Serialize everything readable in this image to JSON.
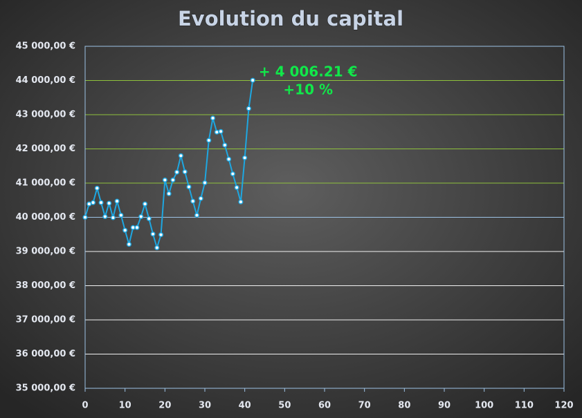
{
  "chart_data": {
    "type": "line",
    "title": "Evolution du capital",
    "annotations": [
      "+ 4 006.21 €",
      "+10 %"
    ],
    "x": [
      0,
      1,
      2,
      3,
      4,
      5,
      6,
      7,
      8,
      9,
      10,
      11,
      12,
      13,
      14,
      15,
      16,
      17,
      18,
      19,
      20,
      21,
      22,
      23,
      24,
      25,
      26,
      27,
      28,
      29,
      30,
      31,
      32,
      33,
      34,
      35,
      36,
      37,
      38,
      39,
      40,
      41,
      42
    ],
    "series": [
      {
        "color": "#1ea7e1",
        "values": [
          40000,
          40390,
          40430,
          40850,
          40430,
          40020,
          40410,
          39990,
          40470,
          40060,
          39620,
          39210,
          39700,
          39700,
          40020,
          40390,
          39960,
          39510,
          39110,
          39490,
          41090,
          40690,
          41090,
          41320,
          41800,
          41330,
          40890,
          40470,
          40060,
          40550,
          41010,
          42250,
          42900,
          42490,
          42510,
          42110,
          41700,
          41270,
          40870,
          40450,
          41740,
          43180,
          44006.21
        ]
      }
    ],
    "xlim": [
      0,
      120
    ],
    "xticks": [
      0,
      10,
      20,
      30,
      40,
      50,
      60,
      70,
      80,
      90,
      100,
      110,
      120
    ],
    "ylim": [
      35000,
      45000
    ],
    "yticks": [
      {
        "value": 35000,
        "label": "35 000,00 €"
      },
      {
        "value": 36000,
        "label": "36 000,00 €"
      },
      {
        "value": 37000,
        "label": "37 000,00 €"
      },
      {
        "value": 38000,
        "label": "38 000,00 €"
      },
      {
        "value": 39000,
        "label": "39 000,00 €"
      },
      {
        "value": 40000,
        "label": "40 000,00 €"
      },
      {
        "value": 41000,
        "label": "41 000,00 €"
      },
      {
        "value": 42000,
        "label": "42 000,00 €"
      },
      {
        "value": 43000,
        "label": "43 000,00 €"
      },
      {
        "value": 44000,
        "label": "44 000,00 €"
      },
      {
        "value": 45000,
        "label": "45 000,00 €"
      }
    ],
    "grid": true,
    "grid_colors": {
      "above": "#8fc23c",
      "base": "#9dc3e6",
      "below": "#f2f2f2"
    },
    "annotation_color": "#11e84a"
  }
}
